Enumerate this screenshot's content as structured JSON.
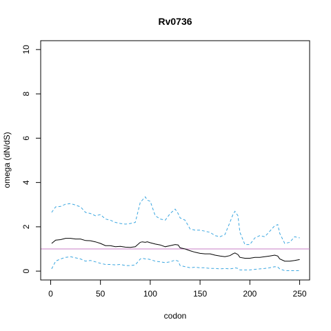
{
  "chart_data": {
    "type": "line",
    "title": "Rv0736",
    "xlabel": "codon",
    "ylabel": "omega (dN/dS)",
    "xlim": [
      0,
      250
    ],
    "ylim": [
      0,
      10
    ],
    "xticks": [
      "0",
      "50",
      "100",
      "150",
      "200",
      "250"
    ],
    "yticks": [
      "0",
      "2",
      "4",
      "6",
      "8",
      "10"
    ],
    "reference_line": {
      "y": 1,
      "color": "#c77cc6"
    },
    "colors": {
      "mean": "#000000",
      "bounds": "#3aa6e0"
    },
    "x": [
      1,
      5,
      10,
      15,
      20,
      25,
      30,
      35,
      40,
      45,
      50,
      55,
      60,
      65,
      70,
      75,
      80,
      85,
      90,
      92,
      95,
      97,
      100,
      105,
      110,
      115,
      120,
      125,
      128,
      130,
      135,
      140,
      145,
      150,
      155,
      160,
      165,
      170,
      175,
      180,
      183,
      185,
      188,
      190,
      195,
      200,
      205,
      210,
      215,
      220,
      225,
      228,
      230,
      235,
      240,
      245,
      250
    ],
    "series": [
      {
        "values": [
          1.25,
          1.4,
          1.42,
          1.48,
          1.48,
          1.45,
          1.45,
          1.38,
          1.37,
          1.32,
          1.25,
          1.15,
          1.15,
          1.1,
          1.12,
          1.08,
          1.07,
          1.1,
          1.3,
          1.32,
          1.3,
          1.32,
          1.28,
          1.22,
          1.18,
          1.1,
          1.15,
          1.2,
          1.18,
          1.05,
          1.0,
          0.92,
          0.85,
          0.8,
          0.78,
          0.78,
          0.72,
          0.68,
          0.65,
          0.7,
          0.78,
          0.82,
          0.75,
          0.62,
          0.58,
          0.58,
          0.62,
          0.62,
          0.65,
          0.68,
          0.72,
          0.68,
          0.55,
          0.45,
          0.45,
          0.48,
          0.52
        ]
      },
      {
        "values": [
          2.65,
          2.9,
          2.92,
          3.02,
          3.05,
          2.98,
          2.9,
          2.65,
          2.6,
          2.5,
          2.55,
          2.35,
          2.3,
          2.2,
          2.15,
          2.12,
          2.15,
          2.2,
          3.1,
          3.2,
          3.35,
          3.2,
          3.15,
          2.5,
          2.35,
          2.3,
          2.6,
          2.8,
          2.6,
          2.4,
          2.3,
          1.9,
          1.85,
          1.85,
          1.8,
          1.75,
          1.6,
          1.55,
          1.65,
          2.2,
          2.55,
          2.7,
          2.5,
          1.75,
          1.2,
          1.2,
          1.5,
          1.6,
          1.55,
          1.8,
          2.05,
          2.1,
          1.7,
          1.25,
          1.3,
          1.55,
          1.5
        ]
      },
      {
        "values": [
          0.1,
          0.45,
          0.55,
          0.62,
          0.65,
          0.6,
          0.55,
          0.45,
          0.48,
          0.42,
          0.35,
          0.3,
          0.3,
          0.28,
          0.3,
          0.25,
          0.25,
          0.28,
          0.55,
          0.58,
          0.55,
          0.55,
          0.52,
          0.45,
          0.42,
          0.38,
          0.42,
          0.5,
          0.45,
          0.25,
          0.2,
          0.15,
          0.18,
          0.15,
          0.15,
          0.12,
          0.12,
          0.1,
          0.12,
          0.1,
          0.12,
          0.15,
          0.12,
          0.05,
          0.05,
          0.05,
          0.08,
          0.1,
          0.12,
          0.15,
          0.2,
          0.18,
          0.1,
          0.02,
          0.02,
          0.02,
          0.02
        ]
      }
    ]
  }
}
